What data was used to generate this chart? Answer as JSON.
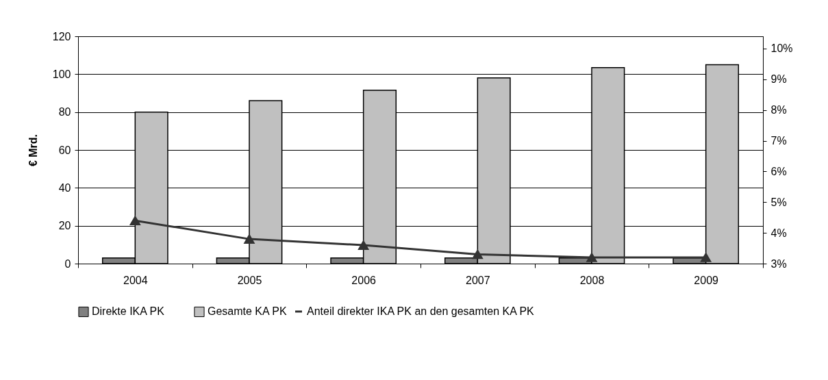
{
  "chart_data": {
    "type": "bar",
    "ylabel": "€ Mrd.",
    "categories": [
      "2004",
      "2005",
      "2006",
      "2007",
      "2008",
      "2009"
    ],
    "series": [
      {
        "name": "Direkte IKA PK",
        "color": "#808080",
        "values": [
          3,
          3,
          3,
          3,
          3,
          3
        ]
      },
      {
        "name": "Gesamte KA PK",
        "color": "#c0c0c0",
        "values": [
          80,
          86,
          91.5,
          98,
          103.5,
          105
        ]
      },
      {
        "name": "Anteil direkter IKA PK an den gesamten KA PK",
        "type": "line",
        "axis": "y2",
        "color": "#333333",
        "marker": "triangle",
        "values": [
          4.4,
          3.8,
          3.6,
          3.3,
          3.2,
          3.2
        ]
      }
    ],
    "ylim": [
      0,
      120
    ],
    "yticks": [
      0,
      20,
      40,
      60,
      80,
      100,
      120
    ],
    "y2lim": [
      3,
      10.4
    ],
    "y2ticks": [
      {
        "value": 3,
        "label": "3%"
      },
      {
        "value": 4,
        "label": "4%"
      },
      {
        "value": 5,
        "label": "5%"
      },
      {
        "value": 6,
        "label": "6%"
      },
      {
        "value": 7,
        "label": "7%"
      },
      {
        "value": 8,
        "label": "8%"
      },
      {
        "value": 9,
        "label": "9%"
      },
      {
        "value": 10,
        "label": "10%"
      }
    ],
    "grid": "y",
    "legend": "bottom"
  }
}
